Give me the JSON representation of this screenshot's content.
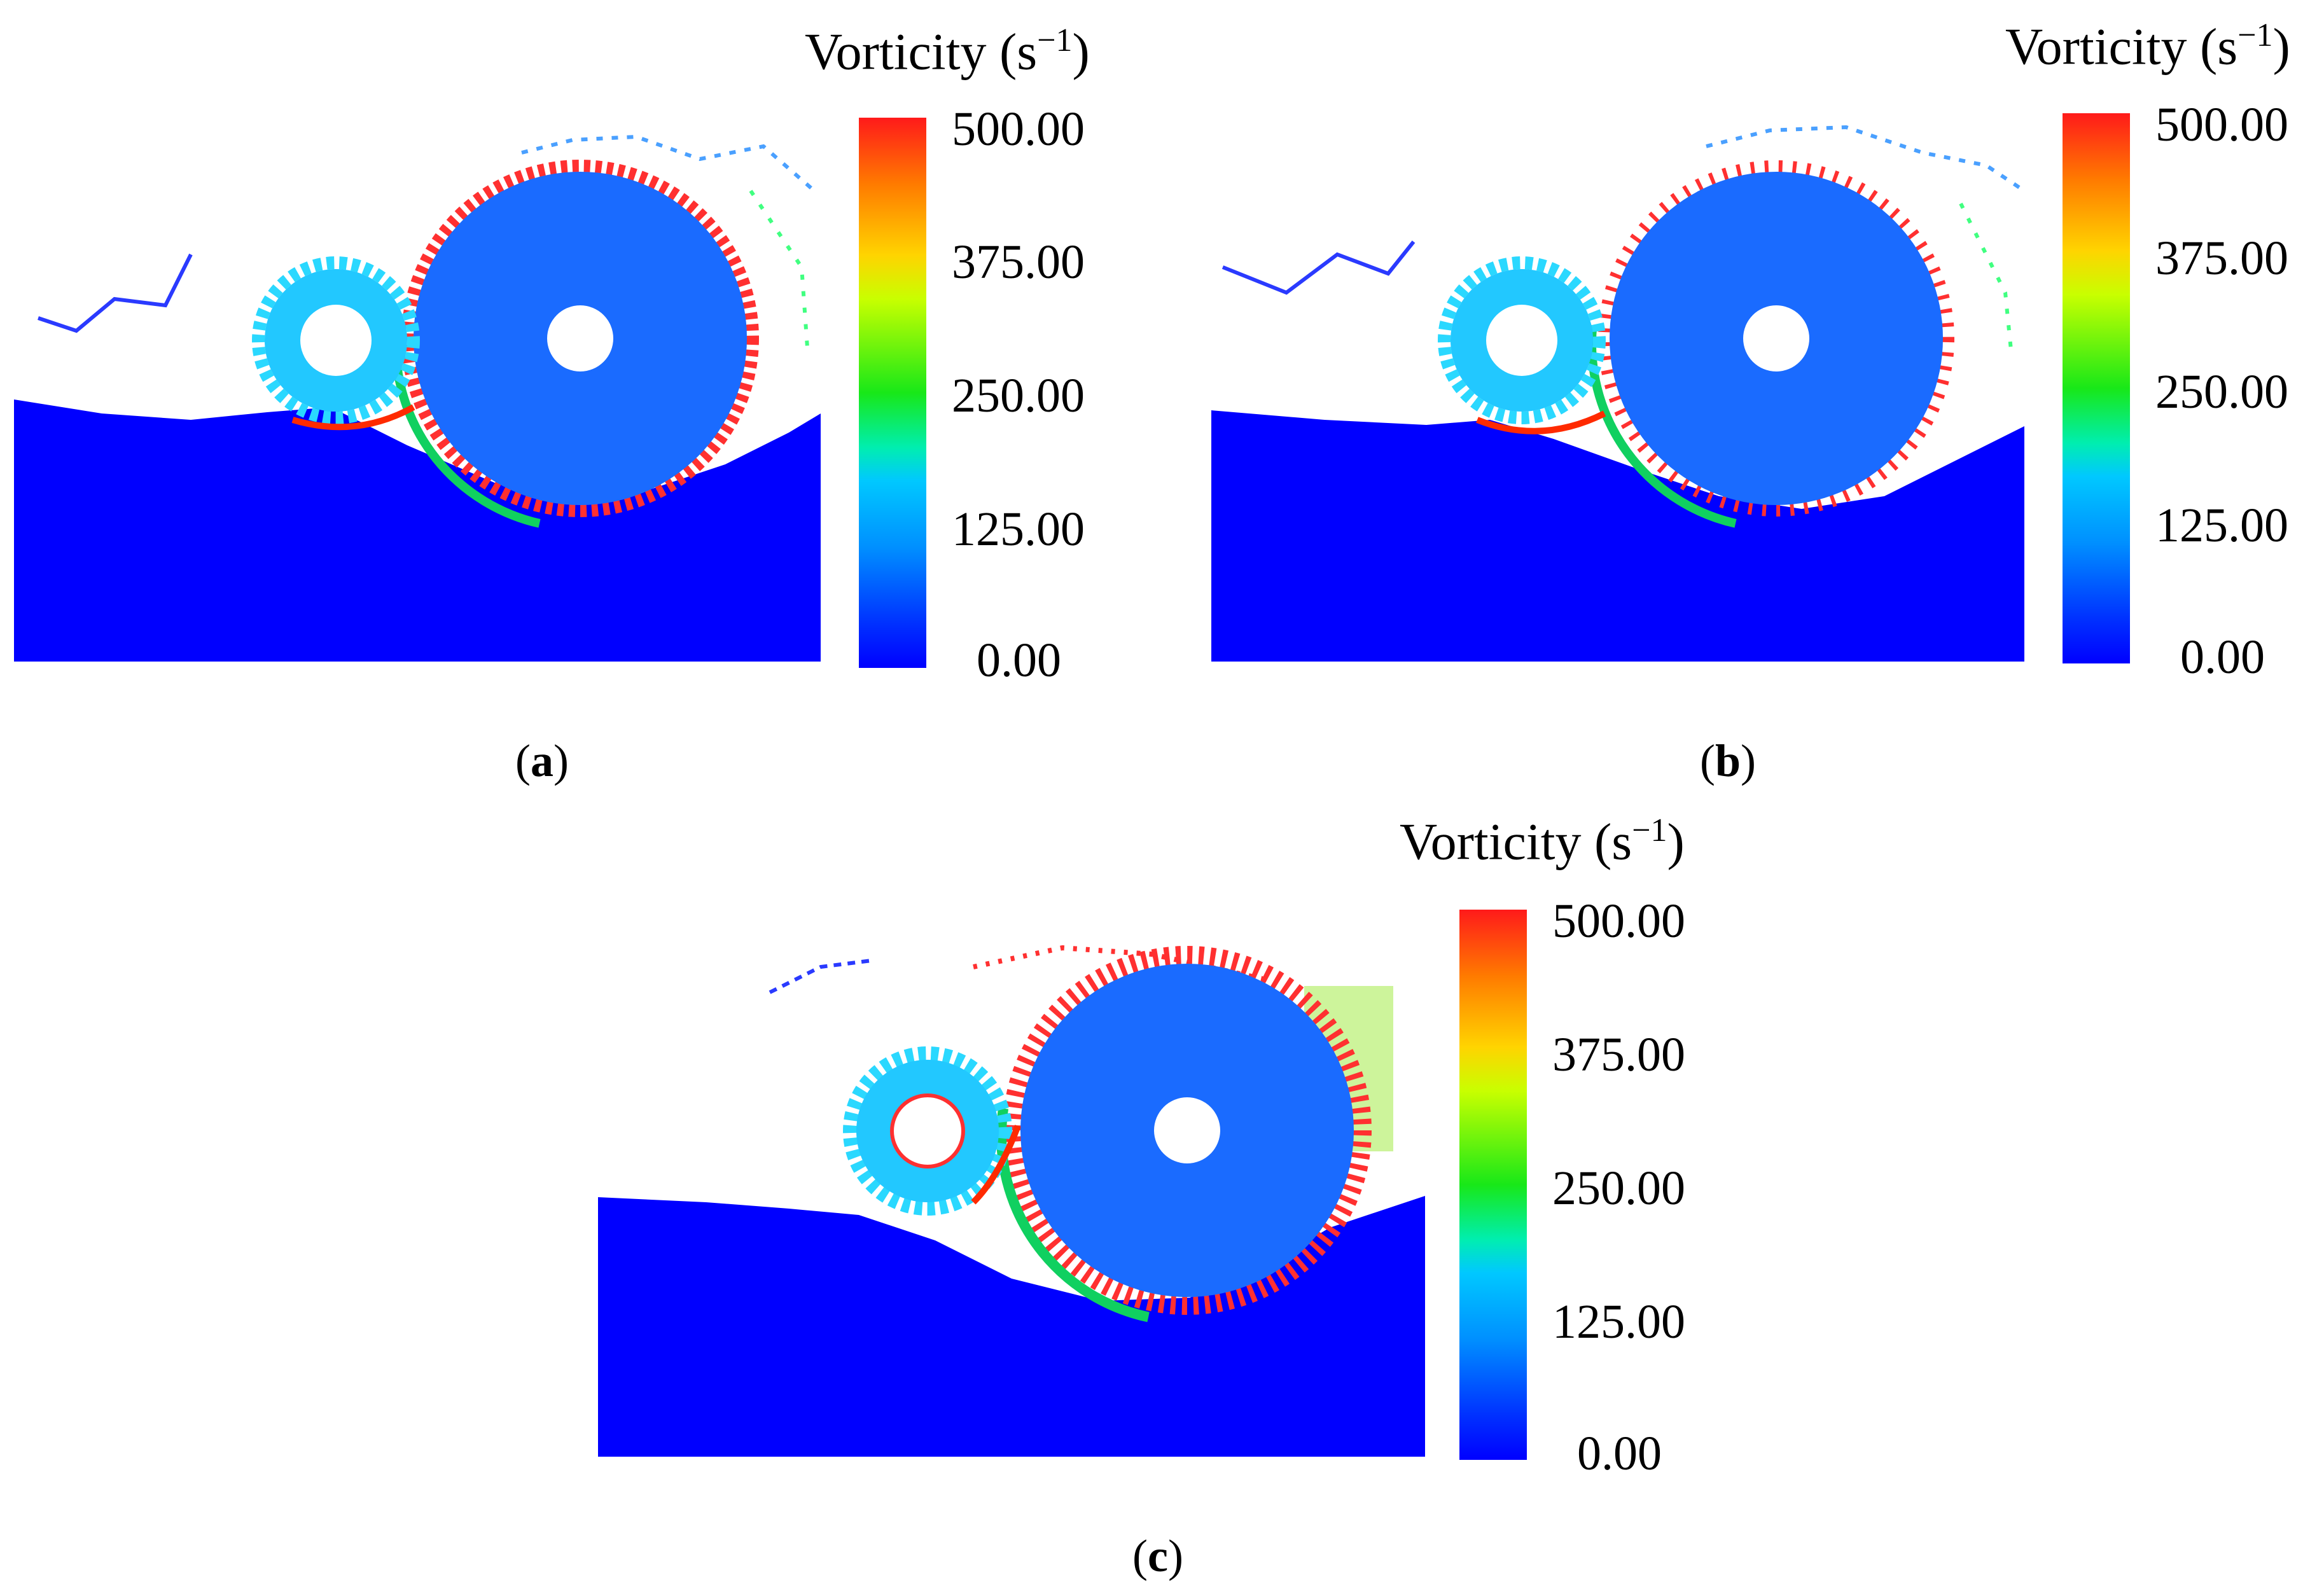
{
  "figure": {
    "colorbar_title": "Vorticity (s",
    "colorbar_unit_exp": "−1",
    "colorbar_close": ")",
    "colorbar_ticks": [
      "500.00",
      "375.00",
      "250.00",
      "125.00",
      "0.00"
    ],
    "colorbar_range": [
      0,
      500
    ],
    "colors": {
      "liquid": "#0000ff",
      "gear": "#1a6bff",
      "small_gear": "#22c8ff",
      "high": "#ff2a00",
      "mid": "#18e818",
      "low": "#00e0ff"
    }
  },
  "panels": [
    {
      "label": "a"
    },
    {
      "label": "b"
    },
    {
      "label": "c"
    }
  ]
}
